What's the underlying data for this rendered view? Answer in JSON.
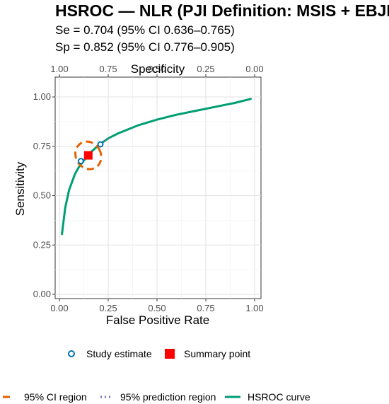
{
  "chart_data": {
    "type": "line",
    "title": "HSROC — NLR (PJI Definition: MSIS + EBJIS)",
    "subtitle_lines": [
      "Se = 0.704 (95% CI 0.636–0.765)",
      "Sp = 0.852 (95% CI 0.776–0.905)"
    ],
    "xlabel": "False Positive Rate",
    "ylabel": "Sensitivity",
    "x2label": "Specificity",
    "xlim": [
      0,
      1
    ],
    "ylim": [
      0,
      1
    ],
    "x_ticks": [
      "0.00",
      "0.25",
      "0.50",
      "0.75",
      "1.00"
    ],
    "y_ticks": [
      "0.00",
      "0.25",
      "0.50",
      "0.75",
      "1.00"
    ],
    "x2_ticks": [
      "1.00",
      "0.75",
      "0.50",
      "0.25",
      "0.00"
    ],
    "grid": true,
    "legend_position": "bottom",
    "series": [
      {
        "name": "HSROC curve",
        "color": "#009E73",
        "x": [
          0.013,
          0.03,
          0.05,
          0.08,
          0.1,
          0.15,
          0.2,
          0.25,
          0.3,
          0.4,
          0.5,
          0.6,
          0.7,
          0.8,
          0.9,
          0.98
        ],
        "y": [
          0.305,
          0.44,
          0.53,
          0.61,
          0.645,
          0.71,
          0.755,
          0.79,
          0.815,
          0.855,
          0.885,
          0.91,
          0.93,
          0.95,
          0.97,
          0.99
        ]
      },
      {
        "name": "Study estimate",
        "color": "#0072B2",
        "x": [
          0.11,
          0.21
        ],
        "y": [
          0.675,
          0.76
        ]
      },
      {
        "name": "Summary point",
        "color": "#FF0000",
        "x": [
          0.148
        ],
        "y": [
          0.704
        ]
      },
      {
        "name": "95% CI region",
        "color": "#E66100",
        "center": [
          0.148,
          0.704
        ],
        "x_halfwidth": 0.064,
        "y_halfwidth": 0.072,
        "rotation_deg": -30
      },
      {
        "name": "95% prediction region",
        "color": "#7570B3",
        "x": [
          0.2,
          0.23,
          0.26
        ],
        "y": [
          0.76,
          0.777,
          0.793
        ]
      }
    ],
    "legend_row1": [
      "Study estimate",
      "Summary point"
    ],
    "legend_row2": [
      "95% CI region",
      "95% prediction region",
      "HSROC curve"
    ]
  }
}
